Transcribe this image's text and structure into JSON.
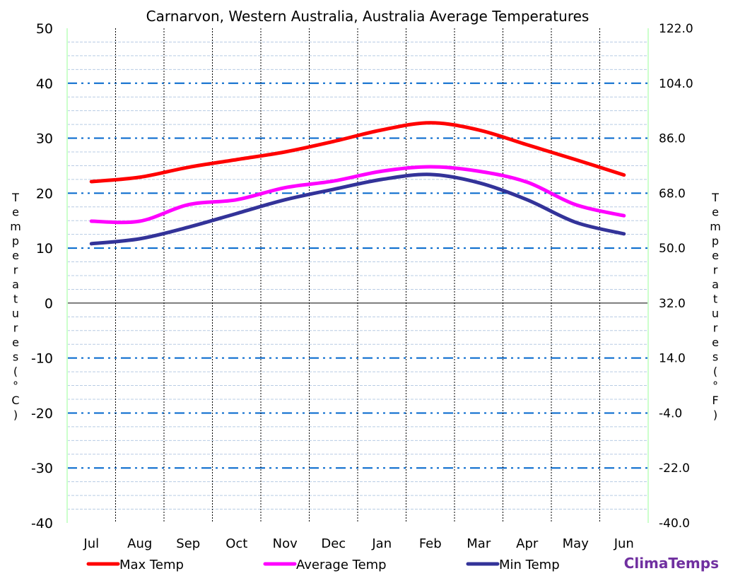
{
  "chart_data": {
    "type": "line",
    "title": "Carnarvon, Western Australia, Australia Average Temperatures",
    "ylabel_left": "Temperatures (°C)",
    "ylabel_right": "Temperatures (°F)",
    "ylim": [
      -40,
      50
    ],
    "yticks_left": [
      "50",
      "40",
      "30",
      "20",
      "10",
      "0",
      "-10",
      "-20",
      "-30",
      "-40"
    ],
    "yticks_right": [
      "122.0",
      "104.0",
      "86.0",
      "68.0",
      "50.0",
      "32.0",
      "14.0",
      "-4.0",
      "-22.0",
      "-40.0"
    ],
    "categories": [
      "Jul",
      "Aug",
      "Sep",
      "Oct",
      "Nov",
      "Dec",
      "Jan",
      "Feb",
      "Mar",
      "Apr",
      "May",
      "Jun"
    ],
    "grid": true,
    "legend_position": "bottom",
    "series": [
      {
        "name": "Max Temp",
        "color": "#ff0000",
        "values": [
          22.1,
          22.9,
          24.7,
          26.1,
          27.5,
          29.4,
          31.5,
          32.8,
          31.5,
          28.8,
          26.1,
          23.3
        ]
      },
      {
        "name": "Average Temp",
        "color": "#ff00ff",
        "values": [
          14.9,
          14.9,
          17.9,
          18.8,
          21.0,
          22.2,
          24.0,
          24.8,
          24.0,
          22.0,
          17.9,
          15.9
        ]
      },
      {
        "name": "Min Temp",
        "color": "#333399",
        "values": [
          10.8,
          11.7,
          13.8,
          16.3,
          18.8,
          20.7,
          22.5,
          23.4,
          21.9,
          18.8,
          14.7,
          12.6
        ]
      }
    ]
  },
  "brand": {
    "text": "ClimaTemps",
    "color": "#7030a0"
  }
}
